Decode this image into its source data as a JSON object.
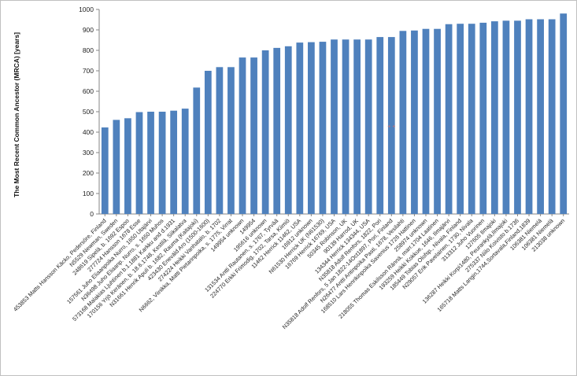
{
  "chart_data": {
    "type": "bar",
    "title": "",
    "xlabel": "",
    "ylabel": "The Most Recent Common Ancestor (MRCA) [years]",
    "ylim": [
      0,
      1000
    ],
    "yticks": [
      0,
      100,
      200,
      300,
      400,
      500,
      600,
      700,
      800,
      900,
      1000
    ],
    "grid": false,
    "legend": "none",
    "bar_color": "#4f81bd",
    "categories": [
      "453853 Matts Hansson Käcko, Pedersöre, Finland",
      "N5529 Newman, Sweden",
      "248619 Sipelä, b. 1692 Espoo",
      "277724 Hansson 1678 Esse",
      "157561 Juho Eliaanpoika Nurro, 1650 Utajärvi",
      "N36498 Juho Eliaanp. Nurro, s. 1650 Muhos",
      "573168 Malakias Ljuhtinen b.1.1881 Karkku and d.1931",
      "170156 Yrjö Keränen, b. 18.6.1748, Kestilä, Siikalatva",
      "N31661 Henrik Apuli b. 1682, Rauma (Kaitajoki)",
      "423430 Eneväld Aro (1500-1600)",
      "274224 Heikki Vanhatalo, b. 1702",
      "N6662, Viinikka, Matti Pietarinpoika, s. 1775, Virrat",
      "149954 unknown",
      "149954",
      "195616 unknown",
      "131534 Antti Rautanen, s. 1767, Tyrvää",
      "224770 Erkki Frimodig, 1702, Tarsa, Kiimiö",
      "11462 Herrick 11462, USA",
      "16912 unknown",
      "N61530 Herrick UK (N61530)",
      "16769 Herrick 16769, USA",
      "50345 Robinson, UK",
      "90139 Harrod, UK",
      "134344 Herrick 134344, USA",
      "N35818 Adolf Renfors, 1822, Pori",
      "N35818 Adolf Renfors, 5 Jan 1822-14Oct1897, Pori, Finland",
      "N26477 Antti Antinpoika Pasti, 1678, Vesilahti",
      "168510 Lars Henrikinpoika Savenius 1726 Hattinen",
      "258974 unknown",
      "218055 Thomas Eskilsson Rännä, marr.1704 Laatinen",
      "193259 Heikki Kokkue, 1646, Ilmajärvi",
      "185449 Tobias Olofsp., Nivala, Finland",
      "N29057 Erik Pavelainen, 1730, Nivala",
      "313312 Juho Vuorinen",
      "127605 Ilmajoki",
      "136287 Heikki Korpi1480, Peurankylä,Ilmajoki",
      "275337 Niilo Koivisto b.1736",
      "165718 Matts Langin,1744,Sortavala,Finland,1839",
      "106381 Niemelä",
      "106381 Niemelä",
      "213038 unknown"
    ],
    "values": [
      423,
      460,
      468,
      498,
      500,
      500,
      505,
      515,
      618,
      700,
      718,
      718,
      765,
      765,
      800,
      812,
      820,
      838,
      840,
      842,
      853,
      853,
      853,
      853,
      865,
      865,
      895,
      897,
      905,
      905,
      928,
      930,
      930,
      935,
      942,
      945,
      945,
      952,
      952,
      952,
      980
    ],
    "annotations": [
      {
        "text": "+ +",
        "color": "#d07070",
        "x_category_index": 25,
        "y": 420
      }
    ]
  }
}
